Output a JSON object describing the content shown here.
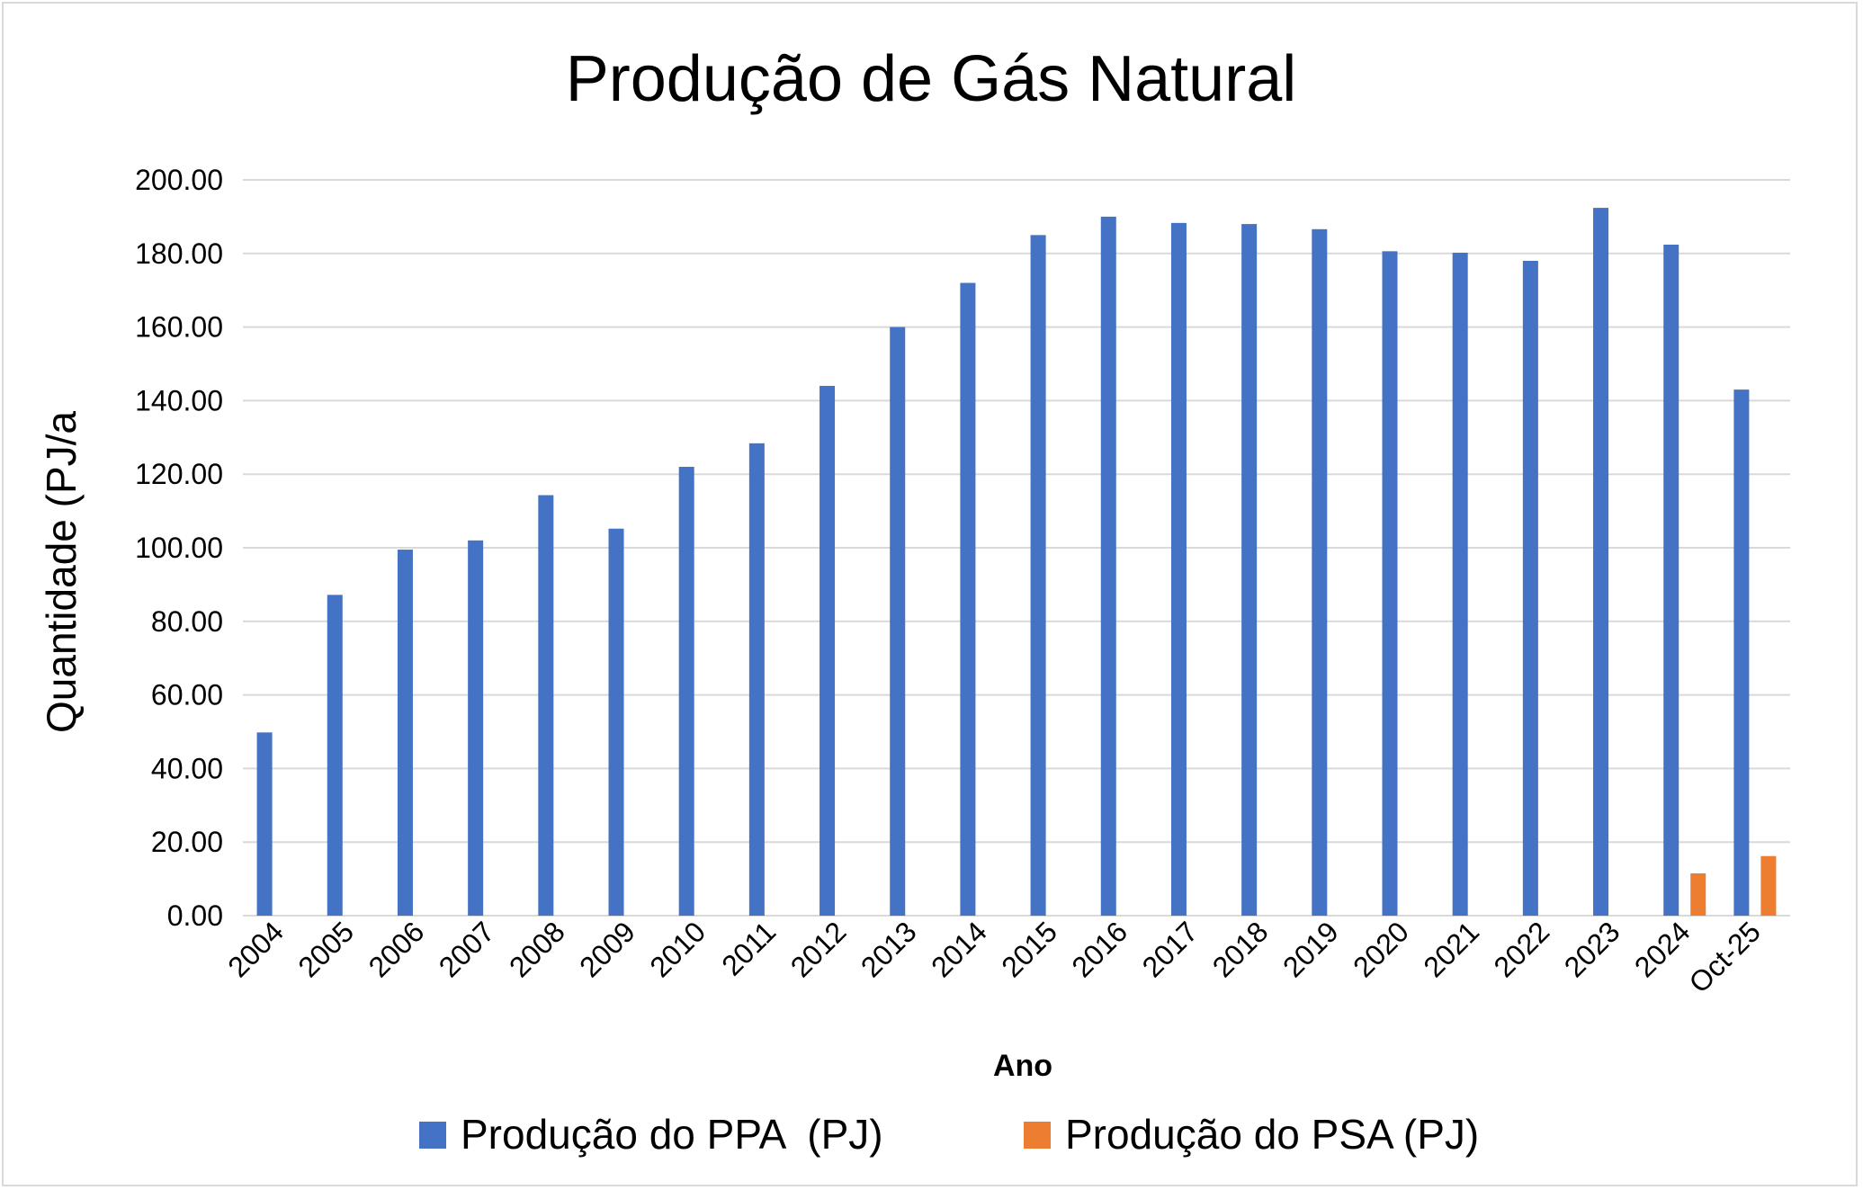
{
  "chart_data": {
    "type": "bar",
    "title": "Produção  de Gás Natural",
    "xlabel": "Ano",
    "ylabel": "Quantidade (PJ/a",
    "ylim": [
      0,
      200
    ],
    "ytick_values": [
      0,
      20,
      40,
      60,
      80,
      100,
      120,
      140,
      160,
      180,
      200
    ],
    "ytick_labels": [
      "0.00",
      "20.00",
      "40.00",
      "60.00",
      "80.00",
      "100.00",
      "120.00",
      "140.00",
      "160.00",
      "180.00",
      "200.00"
    ],
    "grid": true,
    "legend_position": "bottom",
    "categories": [
      "2004",
      "2005",
      "2006",
      "2007",
      "2008",
      "2009",
      "2010",
      "2011",
      "2012",
      "2013",
      "2014",
      "2015",
      "2016",
      "2017",
      "2018",
      "2019",
      "2020",
      "2021",
      "2022",
      "2023",
      "2024",
      "Oct-25"
    ],
    "series": [
      {
        "name": "Produção do PPA  (PJ)",
        "color": "#4472c4",
        "values": [
          49.8,
          87.2,
          99.5,
          102.0,
          114.3,
          105.2,
          122.0,
          128.4,
          144.0,
          160.0,
          172.0,
          185.0,
          190.0,
          188.3,
          188.0,
          186.6,
          180.6,
          180.2,
          178.0,
          192.4,
          182.4,
          143.0
        ]
      },
      {
        "name": "Produção do PSA (PJ)",
        "color": "#ed7d31",
        "values": [
          null,
          null,
          null,
          null,
          null,
          null,
          null,
          null,
          null,
          null,
          null,
          null,
          null,
          null,
          null,
          null,
          null,
          null,
          null,
          null,
          11.5,
          16.2
        ]
      }
    ]
  }
}
